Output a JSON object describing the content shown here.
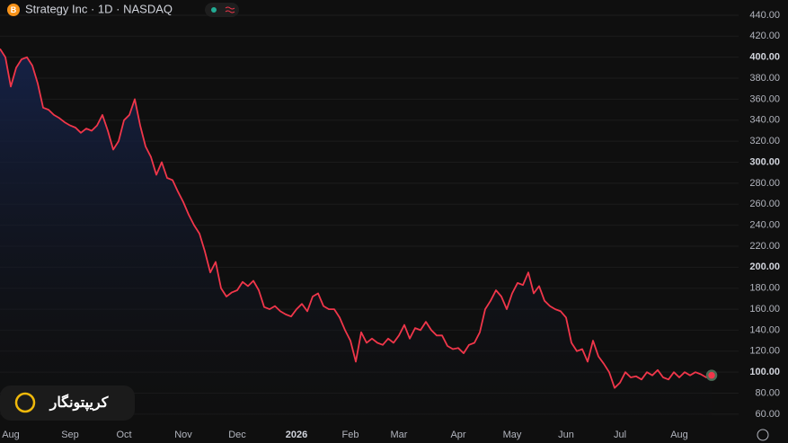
{
  "chart_data": {
    "type": "area-line",
    "title": "Strategy Inc · 1D · NASDAQ",
    "badge": "B",
    "watermark": "کریپتونگار",
    "color": "#f0364a",
    "categories": [
      null,
      null,
      "Aug",
      null,
      null,
      null,
      null,
      null,
      null,
      null,
      null,
      null,
      null,
      "Sep",
      null,
      null,
      null,
      null,
      null,
      null,
      null,
      null,
      null,
      "Oct",
      null,
      null,
      null,
      null,
      null,
      null,
      null,
      null,
      null,
      null,
      "Nov",
      null,
      null,
      null,
      null,
      null,
      null,
      null,
      null,
      null,
      "Dec",
      null,
      null,
      null,
      null,
      null,
      null,
      null,
      null,
      null,
      null,
      "2026",
      null,
      null,
      null,
      null,
      null,
      null,
      null,
      null,
      null,
      "Feb",
      null,
      null,
      null,
      null,
      null,
      null,
      null,
      null,
      "Mar",
      null,
      null,
      null,
      null,
      null,
      null,
      null,
      null,
      null,
      null,
      "Apr",
      null,
      null,
      null,
      null,
      null,
      null,
      null,
      null,
      null,
      "May",
      null,
      null,
      null,
      null,
      null,
      null,
      null,
      null,
      null,
      "Jun",
      null,
      null,
      null,
      null,
      null,
      null,
      null,
      null,
      null,
      "Jul",
      null,
      null,
      null,
      null,
      null,
      null,
      null,
      null,
      null,
      null,
      "Aug",
      null,
      null,
      null,
      null,
      null,
      null
    ],
    "values": [
      408,
      400,
      372,
      390,
      398,
      400,
      392,
      375,
      352,
      350,
      345,
      342,
      338,
      335,
      333,
      328,
      332,
      330,
      335,
      345,
      330,
      312,
      320,
      340,
      345,
      360,
      335,
      315,
      305,
      288,
      300,
      285,
      283,
      272,
      262,
      250,
      240,
      232,
      215,
      195,
      205,
      180,
      172,
      176,
      178,
      186,
      182,
      187,
      178,
      162,
      160,
      163,
      158,
      155,
      153,
      160,
      165,
      158,
      172,
      175,
      163,
      160,
      160,
      152,
      140,
      130,
      110,
      138,
      128,
      132,
      128,
      126,
      132,
      128,
      135,
      145,
      132,
      142,
      140,
      148,
      140,
      135,
      135,
      125,
      122,
      123,
      118,
      126,
      128,
      138,
      160,
      168,
      178,
      172,
      160,
      175,
      185,
      183,
      195,
      175,
      182,
      168,
      163,
      160,
      158,
      152,
      128,
      120,
      122,
      110,
      130,
      115,
      108,
      100,
      85,
      90,
      100,
      95,
      96,
      93,
      100,
      97,
      102,
      95,
      93,
      100,
      95,
      100,
      97,
      100,
      98,
      95,
      97
    ],
    "ylim": [
      50.5,
      454.5
    ],
    "yticks": [
      {
        "value": 440,
        "label": "440.00"
      },
      {
        "value": 420,
        "label": "420.00"
      },
      {
        "value": 400,
        "label": "400.00"
      },
      {
        "value": 380,
        "label": "380.00"
      },
      {
        "value": 360,
        "label": "360.00"
      },
      {
        "value": 340,
        "label": "340.00"
      },
      {
        "value": 320,
        "label": "320.00"
      },
      {
        "value": 300,
        "label": "300.00"
      },
      {
        "value": 280,
        "label": "280.00"
      },
      {
        "value": 260,
        "label": "260.00"
      },
      {
        "value": 240,
        "label": "240.00"
      },
      {
        "value": 220,
        "label": "220.00"
      },
      {
        "value": 200,
        "label": "200.00"
      },
      {
        "value": 180,
        "label": "180.00"
      },
      {
        "value": 160,
        "label": "160.00"
      },
      {
        "value": 140,
        "label": "140.00"
      },
      {
        "value": 120,
        "label": "120.00"
      },
      {
        "value": 100,
        "label": "100.00"
      },
      {
        "value": 80,
        "label": "80.00"
      },
      {
        "value": 60,
        "label": "60.00"
      }
    ],
    "grid": true
  }
}
